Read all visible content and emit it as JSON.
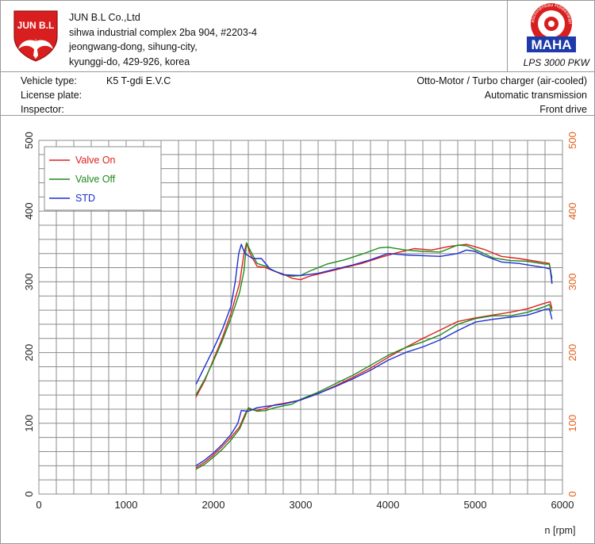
{
  "company": {
    "logo_text": "JUN B.L",
    "name": "JUN B.L Co.,Ltd",
    "address_lines": [
      "sihwa industrial complex 2ba 904, #2203-4",
      "jeongwang-dong, sihung-city,",
      "kyunggi-do, 429-926, korea"
    ]
  },
  "maha": {
    "ring_text": "Maschinenbau Haldenwang",
    "logo_text": "MAHA",
    "model": "LPS 3000 PKW"
  },
  "vehicle": {
    "type_label": "Vehicle type:",
    "type_value": "K5 T-gdi E.V.C",
    "plate_label": "License plate:",
    "plate_value": "",
    "inspector_label": "Inspector:",
    "inspector_value": "",
    "engine": "Otto-Motor / Turbo charger (air-cooled)",
    "transmission": "Automatic transmission",
    "drive": "Front drive"
  },
  "colors": {
    "valve_on": "#e0201c",
    "valve_off": "#1e8a1e",
    "std": "#1d2fd0",
    "right_axis": "#e0601a",
    "grid": "#8c8c8c"
  },
  "chart_data": {
    "type": "line",
    "xlabel": "n [rpm]",
    "xlim": [
      0,
      6000
    ],
    "ylim": [
      0,
      500
    ],
    "x_ticks": [
      0,
      1000,
      2000,
      3000,
      4000,
      5000,
      6000
    ],
    "y_ticks_left": [
      0,
      100,
      200,
      300,
      400,
      500
    ],
    "y_ticks_right": [
      0,
      100,
      200,
      300,
      400,
      500
    ],
    "grid": true,
    "legend_position": "top-left",
    "legend": [
      "Valve On",
      "Valve Off",
      "STD"
    ],
    "series": [
      {
        "name": "Valve On",
        "color_key": "valve_on",
        "upper": [
          [
            1800,
            137
          ],
          [
            1900,
            160
          ],
          [
            2000,
            190
          ],
          [
            2100,
            220
          ],
          [
            2200,
            255
          ],
          [
            2300,
            298
          ],
          [
            2350,
            340
          ],
          [
            2380,
            355
          ],
          [
            2420,
            340
          ],
          [
            2500,
            322
          ],
          [
            2600,
            320
          ],
          [
            2700,
            315
          ],
          [
            2800,
            311
          ],
          [
            2900,
            305
          ],
          [
            3000,
            303
          ],
          [
            3100,
            308
          ],
          [
            3300,
            314
          ],
          [
            3500,
            320
          ],
          [
            3700,
            326
          ],
          [
            3900,
            334
          ],
          [
            4100,
            341
          ],
          [
            4300,
            347
          ],
          [
            4500,
            345
          ],
          [
            4700,
            350
          ],
          [
            4900,
            353
          ],
          [
            5100,
            346
          ],
          [
            5300,
            336
          ],
          [
            5500,
            333
          ],
          [
            5700,
            329
          ],
          [
            5800,
            327
          ],
          [
            5850,
            326
          ],
          [
            5880,
            300
          ]
        ],
        "lower": [
          [
            1800,
            37
          ],
          [
            1900,
            45
          ],
          [
            2000,
            55
          ],
          [
            2100,
            67
          ],
          [
            2200,
            80
          ],
          [
            2300,
            95
          ],
          [
            2370,
            115
          ],
          [
            2400,
            120
          ],
          [
            2500,
            118
          ],
          [
            2600,
            121
          ],
          [
            2700,
            126
          ],
          [
            2800,
            128
          ],
          [
            3000,
            133
          ],
          [
            3200,
            142
          ],
          [
            3400,
            153
          ],
          [
            3600,
            165
          ],
          [
            3800,
            178
          ],
          [
            4000,
            193
          ],
          [
            4200,
            207
          ],
          [
            4400,
            220
          ],
          [
            4600,
            232
          ],
          [
            4800,
            244
          ],
          [
            5000,
            249
          ],
          [
            5200,
            253
          ],
          [
            5400,
            257
          ],
          [
            5600,
            262
          ],
          [
            5800,
            270
          ],
          [
            5860,
            272
          ],
          [
            5880,
            262
          ]
        ]
      },
      {
        "name": "Valve Off",
        "color_key": "valve_off",
        "upper": [
          [
            1800,
            140
          ],
          [
            1900,
            162
          ],
          [
            2000,
            188
          ],
          [
            2100,
            216
          ],
          [
            2200,
            248
          ],
          [
            2300,
            285
          ],
          [
            2350,
            315
          ],
          [
            2380,
            355
          ],
          [
            2420,
            345
          ],
          [
            2500,
            326
          ],
          [
            2600,
            322
          ],
          [
            2700,
            315
          ],
          [
            2800,
            310
          ],
          [
            2900,
            308
          ],
          [
            3000,
            309
          ],
          [
            3100,
            315
          ],
          [
            3300,
            325
          ],
          [
            3500,
            331
          ],
          [
            3700,
            339
          ],
          [
            3900,
            348
          ],
          [
            4000,
            349
          ],
          [
            4200,
            345
          ],
          [
            4400,
            343
          ],
          [
            4600,
            342
          ],
          [
            4800,
            352
          ],
          [
            4900,
            351
          ],
          [
            5100,
            340
          ],
          [
            5200,
            334
          ],
          [
            5400,
            330
          ],
          [
            5600,
            329
          ],
          [
            5800,
            325
          ],
          [
            5850,
            325
          ],
          [
            5880,
            305
          ]
        ],
        "lower": [
          [
            1800,
            35
          ],
          [
            1900,
            42
          ],
          [
            2000,
            52
          ],
          [
            2100,
            63
          ],
          [
            2200,
            76
          ],
          [
            2300,
            92
          ],
          [
            2370,
            112
          ],
          [
            2400,
            122
          ],
          [
            2500,
            117
          ],
          [
            2600,
            118
          ],
          [
            2700,
            122
          ],
          [
            2900,
            127
          ],
          [
            3000,
            134
          ],
          [
            3200,
            144
          ],
          [
            3400,
            156
          ],
          [
            3600,
            168
          ],
          [
            3800,
            182
          ],
          [
            4000,
            196
          ],
          [
            4200,
            207
          ],
          [
            4400,
            215
          ],
          [
            4600,
            225
          ],
          [
            4800,
            240
          ],
          [
            5000,
            248
          ],
          [
            5200,
            252
          ],
          [
            5400,
            252
          ],
          [
            5600,
            257
          ],
          [
            5800,
            265
          ],
          [
            5850,
            268
          ],
          [
            5880,
            258
          ]
        ]
      },
      {
        "name": "STD",
        "color_key": "std",
        "upper": [
          [
            1800,
            155
          ],
          [
            1900,
            180
          ],
          [
            2000,
            205
          ],
          [
            2100,
            232
          ],
          [
            2200,
            265
          ],
          [
            2250,
            300
          ],
          [
            2290,
            340
          ],
          [
            2320,
            353
          ],
          [
            2360,
            340
          ],
          [
            2450,
            333
          ],
          [
            2550,
            333
          ],
          [
            2650,
            318
          ],
          [
            2800,
            310
          ],
          [
            3000,
            309
          ],
          [
            3200,
            312
          ],
          [
            3400,
            318
          ],
          [
            3600,
            324
          ],
          [
            3800,
            331
          ],
          [
            4000,
            340
          ],
          [
            4200,
            338
          ],
          [
            4400,
            337
          ],
          [
            4600,
            336
          ],
          [
            4800,
            340
          ],
          [
            4900,
            345
          ],
          [
            5000,
            343
          ],
          [
            5100,
            337
          ],
          [
            5300,
            328
          ],
          [
            5500,
            326
          ],
          [
            5700,
            322
          ],
          [
            5800,
            320
          ],
          [
            5860,
            318
          ],
          [
            5880,
            297
          ]
        ],
        "lower": [
          [
            1800,
            40
          ],
          [
            1900,
            48
          ],
          [
            2000,
            58
          ],
          [
            2100,
            70
          ],
          [
            2200,
            84
          ],
          [
            2280,
            100
          ],
          [
            2320,
            118
          ],
          [
            2400,
            117
          ],
          [
            2500,
            122
          ],
          [
            2600,
            124
          ],
          [
            2800,
            127
          ],
          [
            3000,
            133
          ],
          [
            3200,
            142
          ],
          [
            3400,
            152
          ],
          [
            3600,
            163
          ],
          [
            3800,
            175
          ],
          [
            4000,
            189
          ],
          [
            4200,
            200
          ],
          [
            4400,
            208
          ],
          [
            4600,
            218
          ],
          [
            4800,
            231
          ],
          [
            5000,
            243
          ],
          [
            5200,
            247
          ],
          [
            5400,
            250
          ],
          [
            5600,
            253
          ],
          [
            5700,
            257
          ],
          [
            5800,
            261
          ],
          [
            5850,
            262
          ],
          [
            5880,
            247
          ]
        ]
      }
    ]
  }
}
